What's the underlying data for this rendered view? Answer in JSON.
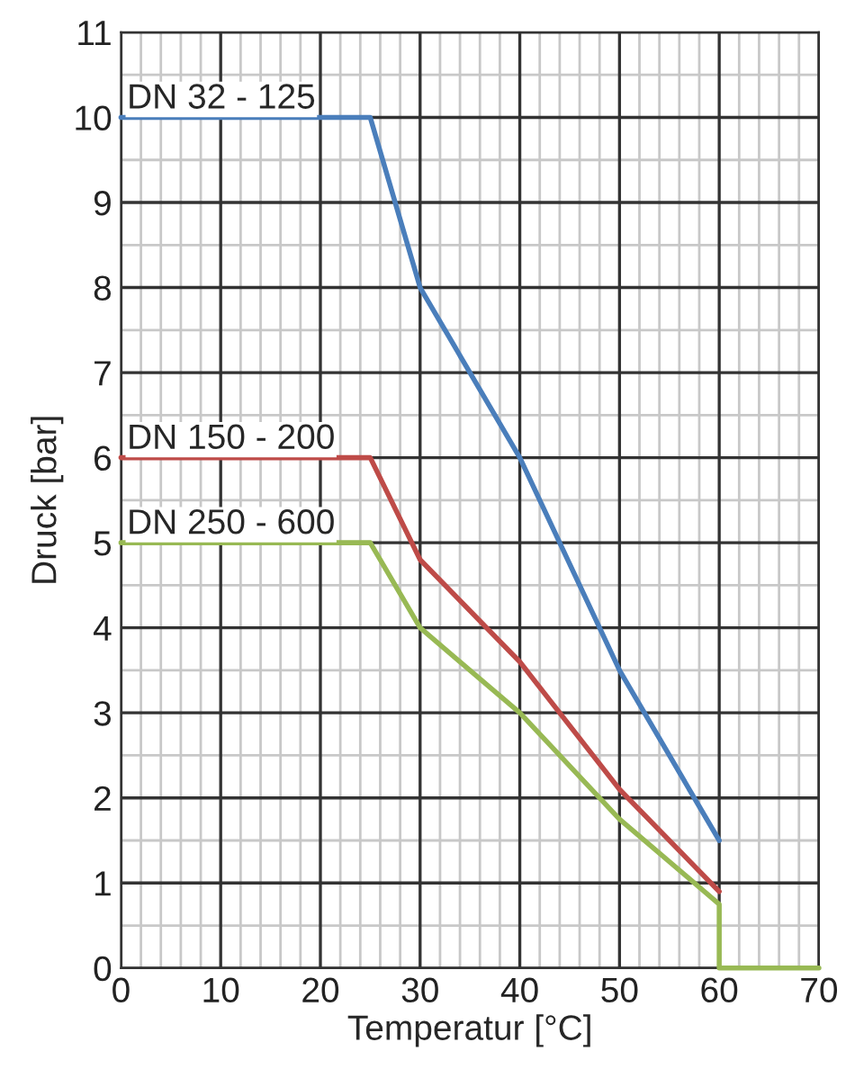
{
  "chart_data": {
    "type": "line",
    "xlabel": "Temperatur [°C]",
    "ylabel": "Druck [bar]",
    "xlim": [
      0,
      70
    ],
    "ylim": [
      0,
      11
    ],
    "xticks": [
      0,
      {
        "value": 2,
        "label": null
      },
      {
        "value": 4,
        "label": null
      },
      {
        "value": 6,
        "label": null
      },
      {
        "value": 8,
        "label": null
      },
      10,
      {
        "value": 12,
        "label": null
      },
      {
        "value": 14,
        "label": null
      },
      {
        "value": 16,
        "label": null
      },
      {
        "value": 18,
        "label": null
      },
      20,
      {
        "value": 22,
        "label": null
      },
      {
        "value": 24,
        "label": null
      },
      {
        "value": 26,
        "label": null
      },
      {
        "value": 28,
        "label": null
      },
      30,
      {
        "value": 32,
        "label": null
      },
      {
        "value": 34,
        "label": null
      },
      {
        "value": 36,
        "label": null
      },
      {
        "value": 38,
        "label": null
      },
      40,
      {
        "value": 42,
        "label": null
      },
      {
        "value": 44,
        "label": null
      },
      {
        "value": 46,
        "label": null
      },
      {
        "value": 48,
        "label": null
      },
      50,
      {
        "value": 52,
        "label": null
      },
      {
        "value": 54,
        "label": null
      },
      {
        "value": 56,
        "label": null
      },
      {
        "value": 58,
        "label": null
      },
      60,
      {
        "value": 62,
        "label": null
      },
      {
        "value": 64,
        "label": null
      },
      {
        "value": 66,
        "label": null
      },
      {
        "value": 68,
        "label": null
      },
      70
    ],
    "yticks": [
      0,
      {
        "value": 0.5,
        "label": null
      },
      1,
      {
        "value": 1.5,
        "label": null
      },
      2,
      {
        "value": 2.5,
        "label": null
      },
      3,
      {
        "value": 3.5,
        "label": null
      },
      4,
      {
        "value": 4.5,
        "label": null
      },
      5,
      {
        "value": 5.5,
        "label": null
      },
      6,
      {
        "value": 6.5,
        "label": null
      },
      7,
      {
        "value": 7.5,
        "label": null
      },
      8,
      {
        "value": 8.5,
        "label": null
      },
      9,
      {
        "value": 9.5,
        "label": null
      },
      10,
      {
        "value": 10.5,
        "label": null
      },
      11
    ],
    "grid": true,
    "legend": false,
    "series": [
      {
        "name": "DN 32 - 125",
        "color": "#4a7ebb",
        "x": [
          0,
          25,
          30,
          40,
          50,
          60
        ],
        "values": [
          10,
          10,
          8,
          6,
          3.5,
          1.5
        ]
      },
      {
        "name": "DN 150 - 200",
        "color": "#be4b48",
        "x": [
          0,
          25,
          30,
          40,
          50,
          60
        ],
        "values": [
          6,
          6,
          4.8,
          3.6,
          2.1,
          0.9
        ]
      },
      {
        "name": "DN 250 - 600",
        "color": "#98b954",
        "x": [
          0,
          25,
          30,
          40,
          50,
          60,
          60,
          70
        ],
        "values": [
          5,
          5,
          4,
          3,
          1.75,
          0.75,
          0,
          0
        ]
      }
    ]
  }
}
